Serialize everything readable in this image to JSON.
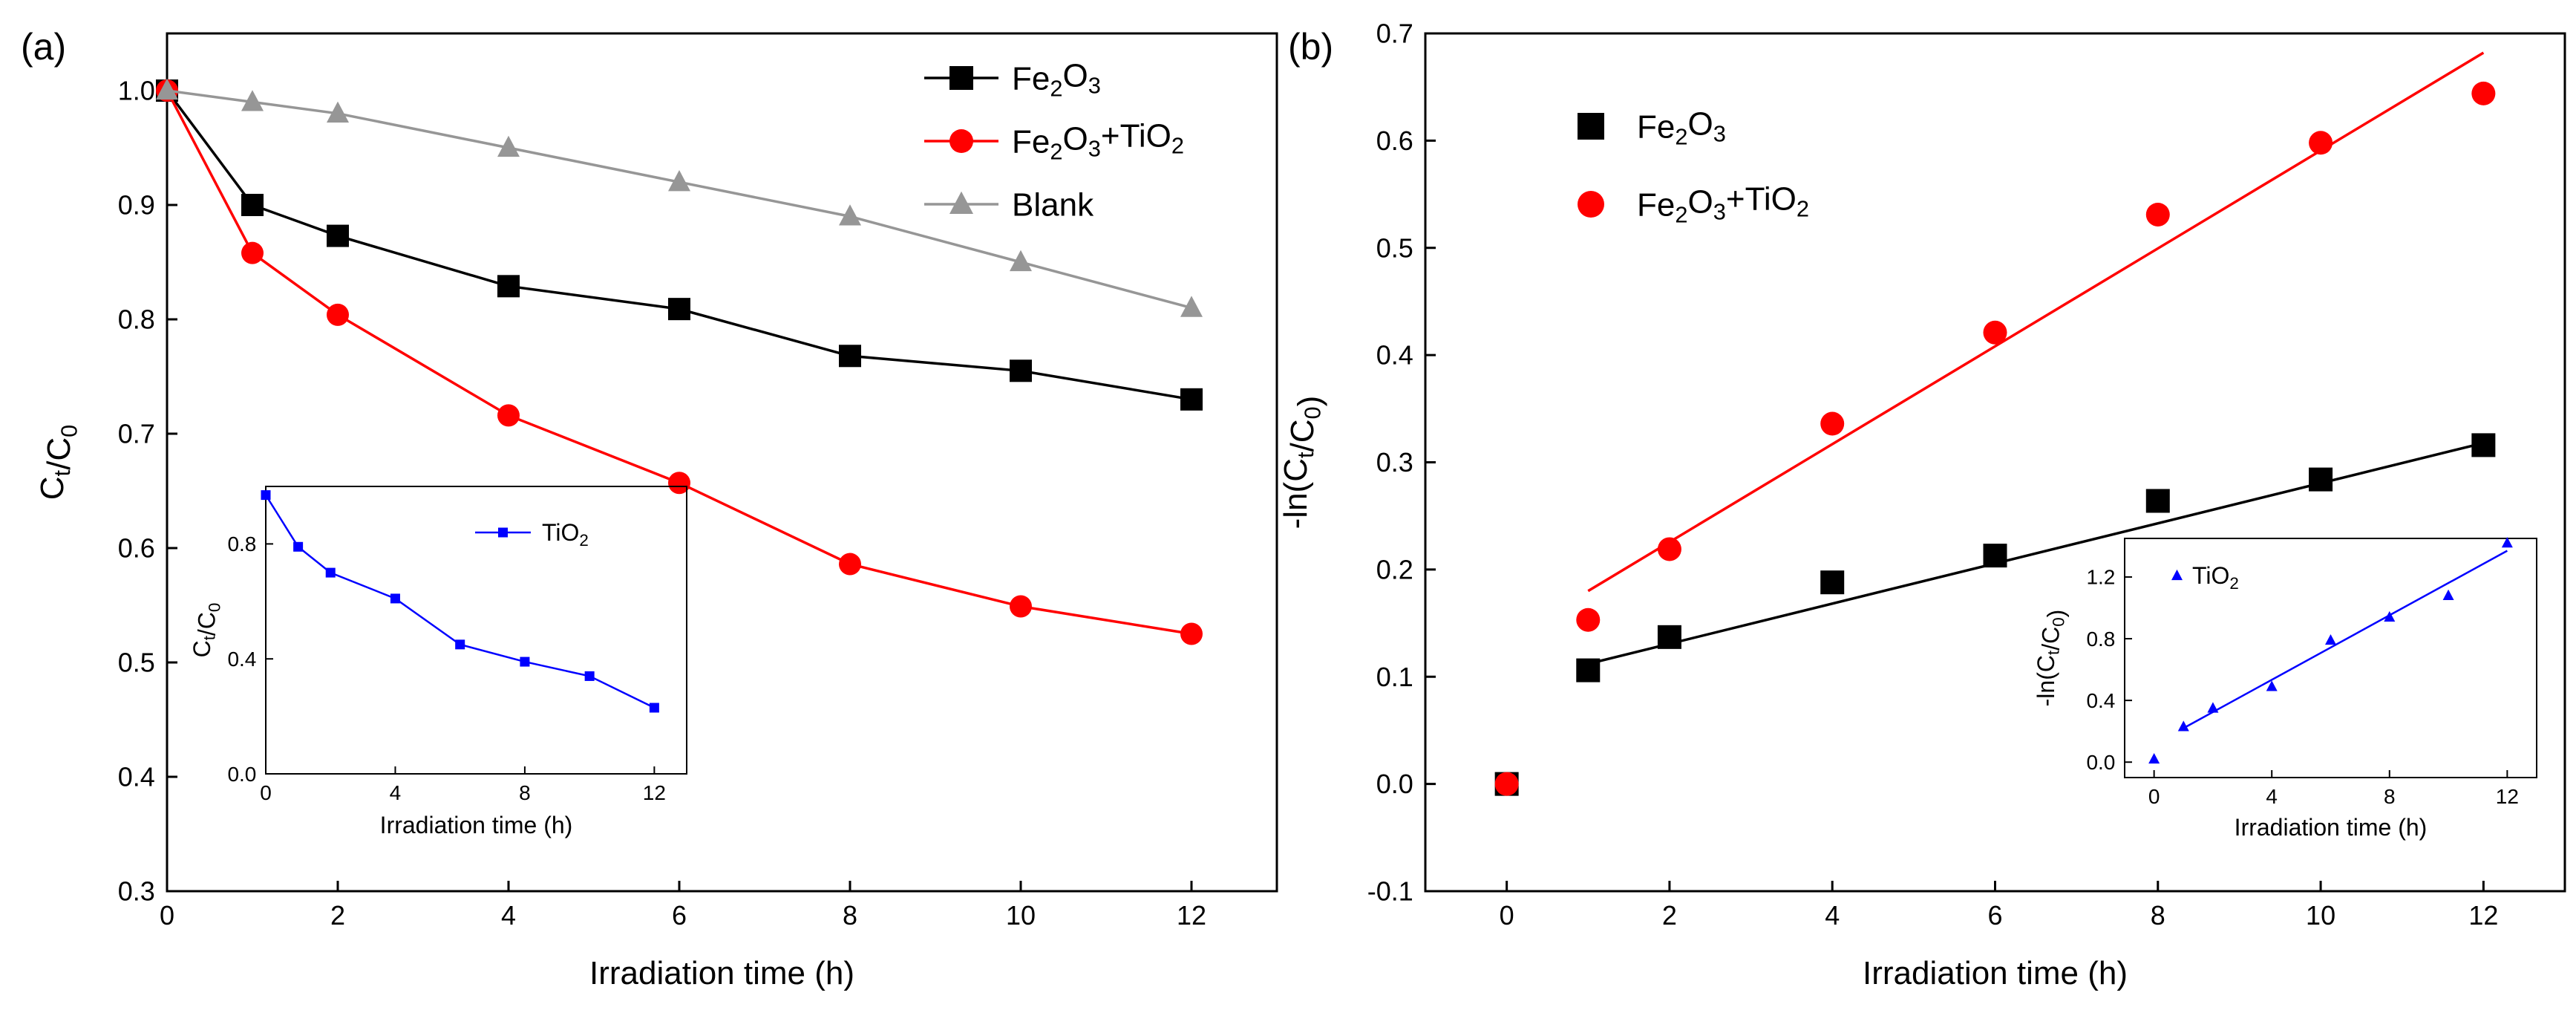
{
  "panels": {
    "a": {
      "tag": "(a)"
    },
    "b": {
      "tag": "(b)"
    }
  },
  "colors": {
    "fe2o3": "#000000",
    "fe2o3_tio2": "#ff0000",
    "blank": "#969696",
    "tio2": "#0000ff"
  },
  "chart_data": [
    {
      "id": "a-main",
      "type": "line",
      "xlabel": "Irradiation time (h)",
      "ylabel": "Ct/C0",
      "xlim": [
        0,
        13
      ],
      "ylim": [
        0.3,
        1.05
      ],
      "xticks": [
        0,
        2,
        4,
        6,
        8,
        10,
        12
      ],
      "yticks": [
        0.3,
        0.4,
        0.5,
        0.6,
        0.7,
        0.8,
        0.9,
        1.0
      ],
      "legend_position": "top-right",
      "grid": false,
      "series": [
        {
          "name": "Fe2O3",
          "marker": "square",
          "x": [
            0,
            1,
            2,
            4,
            6,
            8,
            10,
            12
          ],
          "y": [
            1.0,
            0.9,
            0.873,
            0.829,
            0.809,
            0.768,
            0.755,
            0.73
          ]
        },
        {
          "name": "Fe2O3+TiO2",
          "marker": "circle",
          "x": [
            0,
            1,
            2,
            4,
            6,
            8,
            10,
            12
          ],
          "y": [
            1.0,
            0.858,
            0.804,
            0.716,
            0.657,
            0.586,
            0.549,
            0.525
          ]
        },
        {
          "name": "Blank",
          "marker": "triangle",
          "x": [
            0,
            1,
            2,
            4,
            6,
            8,
            10,
            12
          ],
          "y": [
            1.0,
            0.99,
            0.98,
            0.95,
            0.92,
            0.89,
            0.85,
            0.81
          ]
        }
      ]
    },
    {
      "id": "a-inset",
      "type": "line",
      "xlabel": "Irradiation time (h)",
      "ylabel": "Ct/C0",
      "xlim": [
        0,
        13
      ],
      "ylim": [
        0.0,
        1.0
      ],
      "xticks": [
        0,
        4,
        8,
        12
      ],
      "yticks": [
        0.0,
        0.4,
        0.8
      ],
      "series": [
        {
          "name": "TiO2",
          "marker": "square",
          "x": [
            0,
            1,
            2,
            4,
            6,
            8,
            10,
            12
          ],
          "y": [
            0.97,
            0.79,
            0.7,
            0.61,
            0.45,
            0.39,
            0.34,
            0.23
          ]
        }
      ]
    },
    {
      "id": "b-main",
      "type": "scatter",
      "xlabel": "Irradiation time (h)",
      "ylabel": "-ln(Ct/C0)",
      "xlim": [
        -1,
        13
      ],
      "ylim": [
        -0.1,
        0.7
      ],
      "xticks": [
        0,
        2,
        4,
        6,
        8,
        10,
        12
      ],
      "yticks": [
        -0.1,
        0.0,
        0.1,
        0.2,
        0.3,
        0.4,
        0.5,
        0.6,
        0.7
      ],
      "legend_position": "top-left",
      "grid": false,
      "series": [
        {
          "name": "Fe2O3",
          "marker": "square",
          "x": [
            0,
            1,
            2,
            4,
            6,
            8,
            10,
            12
          ],
          "y": [
            0.0,
            0.106,
            0.137,
            0.188,
            0.213,
            0.264,
            0.284,
            0.316
          ],
          "fit": {
            "x": [
              1,
              12
            ],
            "y": [
              0.112,
              0.318
            ]
          }
        },
        {
          "name": "Fe2O3+TiO2",
          "marker": "circle",
          "x": [
            0,
            1,
            2,
            4,
            6,
            8,
            10,
            12
          ],
          "y": [
            0.0,
            0.153,
            0.219,
            0.336,
            0.421,
            0.531,
            0.598,
            0.644
          ],
          "fit": {
            "x": [
              1,
              12
            ],
            "y": [
              0.18,
              0.682
            ]
          }
        }
      ]
    },
    {
      "id": "b-inset",
      "type": "scatter",
      "xlabel": "Irradiation time (h)",
      "ylabel": "-ln(Ct/C0)",
      "xlim": [
        -1,
        13
      ],
      "ylim": [
        -0.1,
        1.45
      ],
      "xticks": [
        0,
        4,
        8,
        12
      ],
      "yticks": [
        0.0,
        0.4,
        0.8,
        1.2
      ],
      "series": [
        {
          "name": "TiO2",
          "marker": "triangle",
          "x": [
            0,
            1,
            2,
            4,
            6,
            8,
            10,
            12
          ],
          "y": [
            0.02,
            0.23,
            0.35,
            0.49,
            0.79,
            0.94,
            1.08,
            1.42
          ],
          "fit": {
            "x": [
              1,
              12
            ],
            "y": [
              0.22,
              1.37
            ]
          }
        }
      ]
    }
  ]
}
